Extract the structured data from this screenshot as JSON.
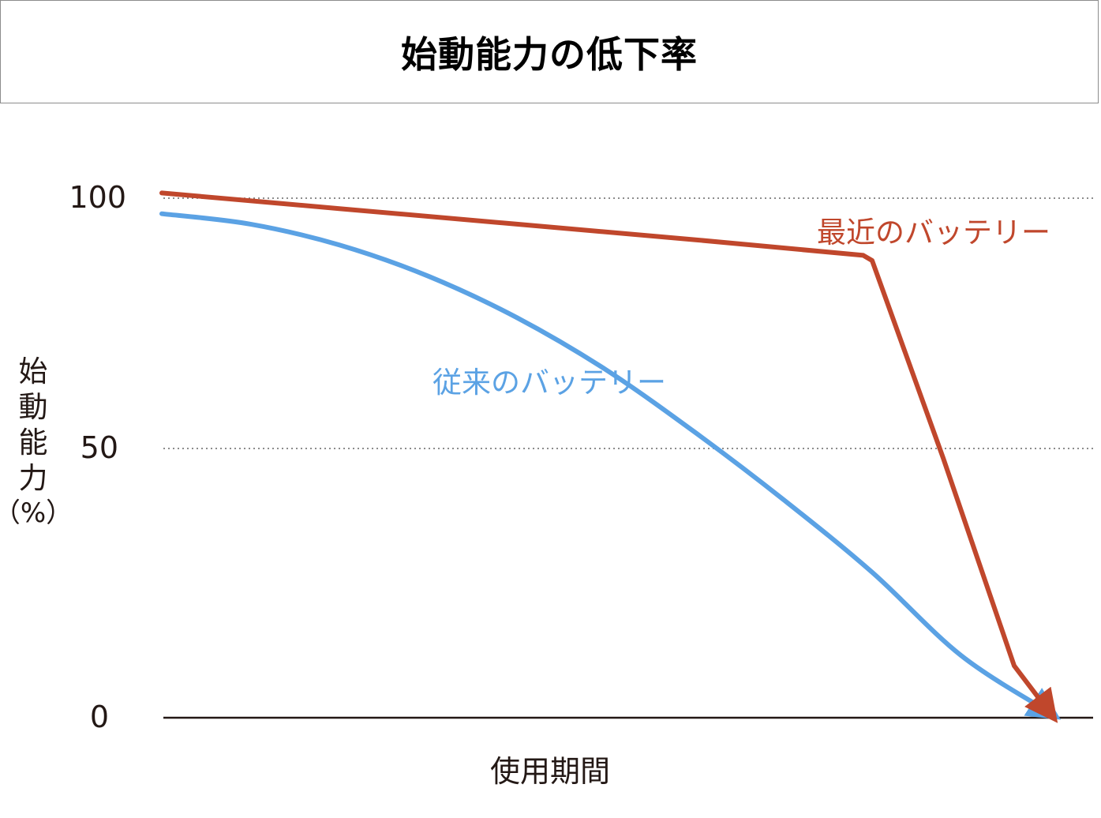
{
  "title": "始動能力の低下率",
  "chart_data": {
    "type": "line",
    "title": "始動能力の低下率",
    "xlabel": "使用期間",
    "ylabel_chars": [
      "始",
      "動",
      "能",
      "力"
    ],
    "ylabel_unit": "（%）",
    "yticks": [
      {
        "value": 100,
        "label": "100"
      },
      {
        "value": 50,
        "label": "50"
      },
      {
        "value": 0,
        "label": "0"
      }
    ],
    "ylim": [
      0,
      100
    ],
    "xlim": [
      0,
      1
    ],
    "grid": {
      "horizontal_dotted_at": [
        100,
        50
      ],
      "baseline_at": 0
    },
    "series": [
      {
        "name": "従来のバッテリー",
        "color": "#5ba2e4",
        "points": [
          [
            0.0,
            97
          ],
          [
            0.1,
            95
          ],
          [
            0.2,
            91
          ],
          [
            0.3,
            85
          ],
          [
            0.4,
            77
          ],
          [
            0.5,
            67
          ],
          [
            0.6,
            55
          ],
          [
            0.7,
            42
          ],
          [
            0.8,
            28
          ],
          [
            0.9,
            12
          ],
          [
            1.0,
            1
          ]
        ]
      },
      {
        "name": "最近のバッテリー",
        "color": "#c0472c",
        "points": [
          [
            0.0,
            101
          ],
          [
            0.2,
            98
          ],
          [
            0.4,
            95
          ],
          [
            0.6,
            92
          ],
          [
            0.79,
            89
          ],
          [
            0.8,
            88
          ],
          [
            0.88,
            50
          ],
          [
            0.96,
            10
          ],
          [
            1.0,
            1
          ]
        ]
      }
    ]
  }
}
